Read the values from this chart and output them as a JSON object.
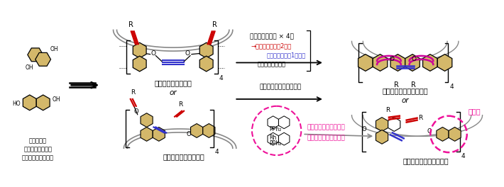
{
  "figsize": [
    7.1,
    2.64
  ],
  "dpi": 100,
  "bg_color": "#ffffff",
  "naph_color": "#d4b86a",
  "naph_edge": "#000000",
  "red_color": "#cc0000",
  "blue_color": "#3333cc",
  "magenta_color": "#cc0099",
  "pink_color": "#ee1199",
  "gray_color": "#888888",
  "texts": {
    "starting": "出発原料：\n連結位置の異なる\nナフタレンジオール",
    "sym": "対称な環状ポリイン",
    "asym": "非対称な環状ポリイン",
    "cyclo": "シクロフェナセン類縁体",
    "chiral": "キラル型ベルト共役分子",
    "aromatic": "芳香環構築反応 × 4回",
    "red_alk": "→赤色のアルキン2つと",
    "blue_alk": "青色のアルキン1つから",
    "benz": "ベンゼン環を構築",
    "cation": "カチオン性ロジウム触媒",
    "axial": "軸不斏配位子によって",
    "control": "不斏をコントロール！",
    "face": "面不斏",
    "or": "or",
    "PPh2": "PPh₂",
    "Rh": "Rh"
  }
}
